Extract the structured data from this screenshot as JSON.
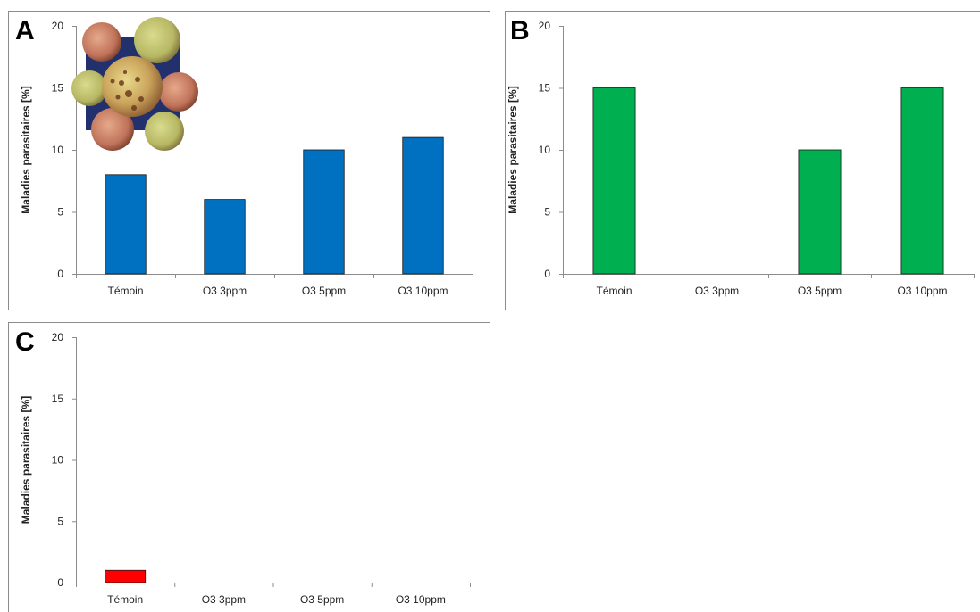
{
  "chart_data": [
    {
      "panel_letter": "A",
      "type": "bar",
      "categories": [
        "Témoin",
        "O3 3ppm",
        "O3 5ppm",
        "O3 10ppm"
      ],
      "values": [
        8,
        6,
        10,
        11
      ],
      "ylabel": "Maladies parasitaires [%]",
      "ylim": [
        0,
        20
      ],
      "yticks": [
        0,
        5,
        10,
        15,
        20
      ],
      "grid": false,
      "bar_color": "#0070c0",
      "inset_image": "spotted-apples-photo"
    },
    {
      "panel_letter": "B",
      "type": "bar",
      "categories": [
        "Témoin",
        "O3 3ppm",
        "O3 5ppm",
        "O3 10ppm"
      ],
      "values": [
        15,
        0,
        10,
        15
      ],
      "ylabel": "Maladies parasitaires [%]",
      "ylim": [
        0,
        20
      ],
      "yticks": [
        0,
        5,
        10,
        15,
        20
      ],
      "grid": false,
      "bar_color": "#00b050"
    },
    {
      "panel_letter": "C",
      "type": "bar",
      "categories": [
        "Témoin",
        "O3 3ppm",
        "O3 5ppm",
        "O3 10ppm"
      ],
      "values": [
        1,
        0,
        0,
        0
      ],
      "ylabel": "Maladies parasitaires [%]",
      "ylim": [
        0,
        20
      ],
      "yticks": [
        0,
        5,
        10,
        15,
        20
      ],
      "grid": false,
      "bar_color": "#ff0000"
    }
  ]
}
